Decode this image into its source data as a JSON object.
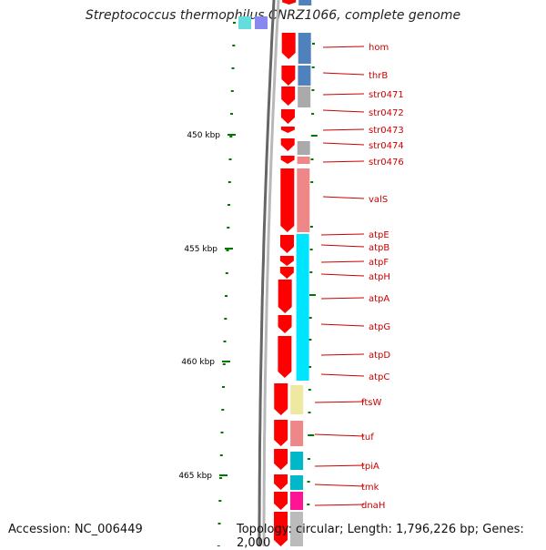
{
  "title": "Streptococcus thermophilus CNRZ1066, complete genome",
  "accession_text": "Accession: NC_006449",
  "summary_text": "Topology: circular; Length: 1,796,226 bp; Genes: 2,000",
  "ticks": [
    "450 kbp",
    "455 kbp",
    "460 kbp",
    "465 kbp"
  ],
  "genes": [
    "hom",
    "thrB",
    "str0471",
    "str0472",
    "str0473",
    "str0474",
    "str0476",
    "valS",
    "atpE",
    "atpB",
    "atpF",
    "atpH",
    "atpA",
    "atpG",
    "atpD",
    "atpC",
    "ftsW",
    "tuf",
    "tpiA",
    "tmk",
    "dnaH"
  ],
  "colors": {
    "cds": "#ff0000",
    "backbone": "#888888",
    "tick": "#007700",
    "label": "#cc0000",
    "cog_blue": "#4f81bd",
    "cog_gray": "#aaaaaa",
    "cog_salmon": "#ee8888",
    "cog_cyan": "#00e5ff",
    "cog_yellow": "#eee8a0",
    "cog_teal": "#00b8c8",
    "cog_magenta": "#ff1493"
  }
}
